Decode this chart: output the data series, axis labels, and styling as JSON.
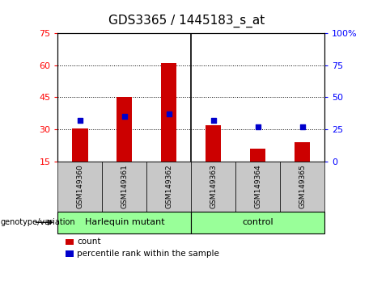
{
  "title": "GDS3365 / 1445183_s_at",
  "samples": [
    "GSM149360",
    "GSM149361",
    "GSM149362",
    "GSM149363",
    "GSM149364",
    "GSM149365"
  ],
  "counts": [
    30.5,
    45.0,
    61.0,
    32.0,
    21.0,
    24.0
  ],
  "percentile_ranks": [
    32,
    35,
    37,
    32,
    27,
    27
  ],
  "ylim_left": [
    15,
    75
  ],
  "ylim_right": [
    0,
    100
  ],
  "yticks_left": [
    15,
    30,
    45,
    60,
    75
  ],
  "yticks_right": [
    0,
    25,
    50,
    75,
    100
  ],
  "ytick_right_labels": [
    "0",
    "25",
    "50",
    "75",
    "100%"
  ],
  "bar_color": "#cc0000",
  "dot_color": "#0000cc",
  "bar_width": 0.35,
  "group1_label": "Harlequin mutant",
  "group2_label": "control",
  "group_bg_color": "#99ff99",
  "sample_box_color": "#c8c8c8",
  "xlabel_text": "genotype/variation",
  "legend_count_label": "count",
  "legend_pct_label": "percentile rank within the sample",
  "bar_bottom": 15,
  "title_fontsize": 11,
  "axis_fontsize": 8,
  "label_fontsize": 8
}
